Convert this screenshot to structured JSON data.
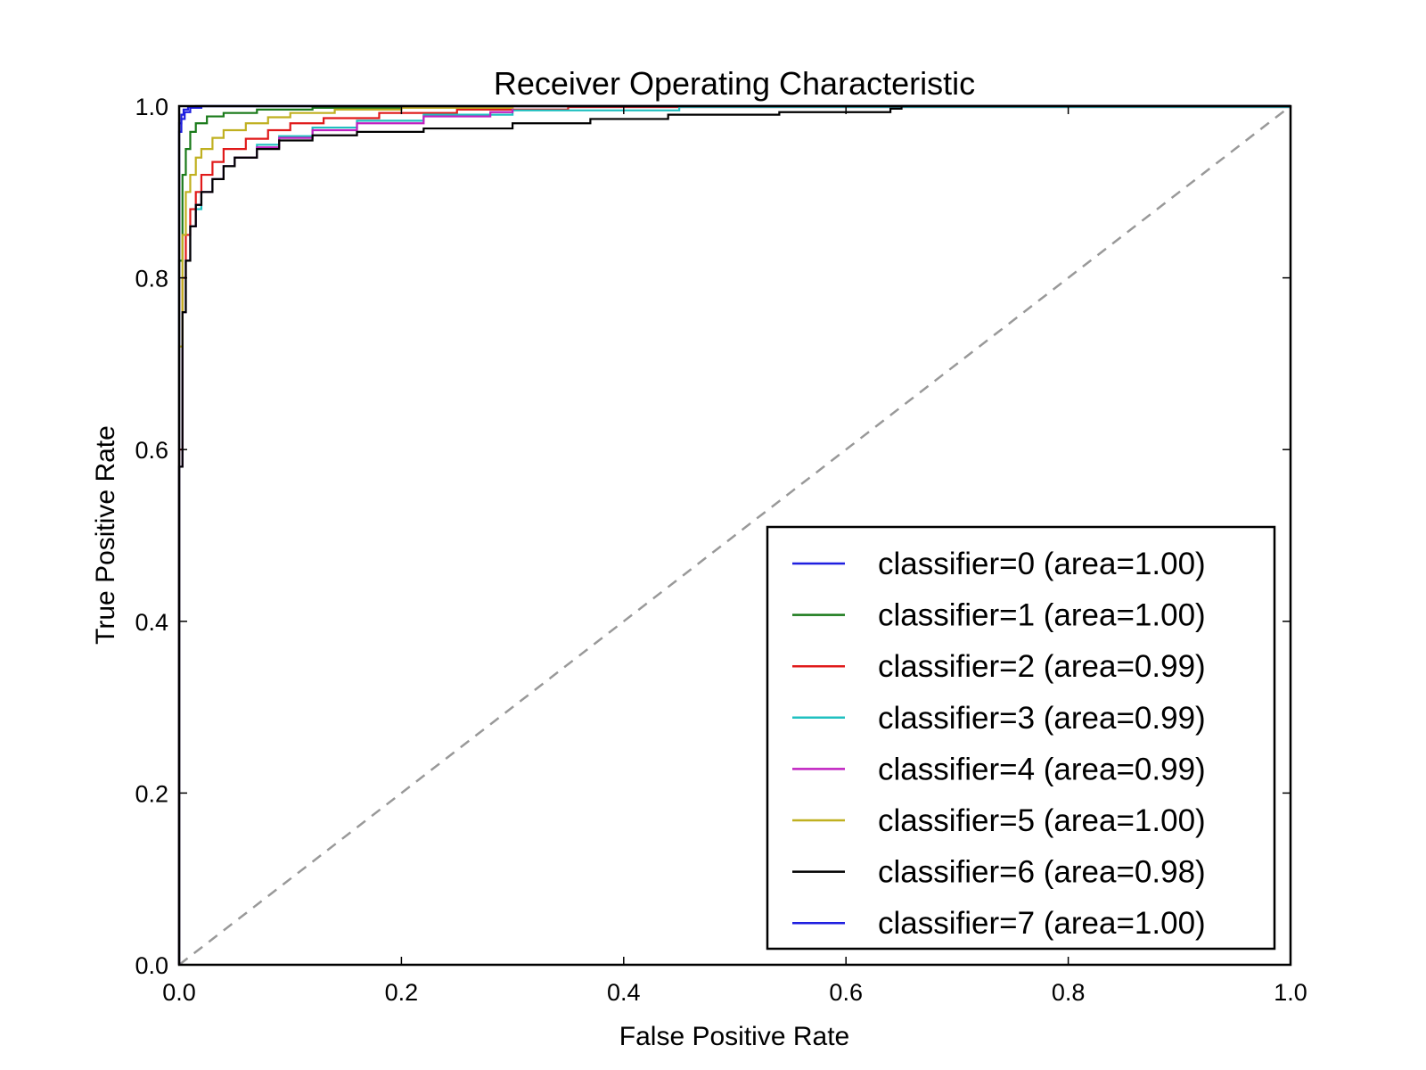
{
  "chart_data": {
    "type": "line",
    "title": "Receiver Operating Characteristic",
    "xlabel": "False Positive Rate",
    "ylabel": "True Positive Rate",
    "xlim": [
      0,
      1
    ],
    "ylim": [
      0,
      1
    ],
    "xticks": [
      "0.0",
      "0.2",
      "0.4",
      "0.6",
      "0.8",
      "1.0"
    ],
    "yticks": [
      "0.0",
      "0.2",
      "0.4",
      "0.6",
      "0.8",
      "1.0"
    ],
    "grid": false,
    "legend_position": "lower-right",
    "diagonal": {
      "x": [
        0,
        1
      ],
      "y": [
        0,
        1
      ],
      "color": "#999999",
      "style": "dashed"
    },
    "series": [
      {
        "name": "classifier=0 (area=1.00)",
        "color": "#1f1fe0",
        "x": [
          0,
          0,
          0.002,
          0.005,
          0.01,
          0.02,
          1
        ],
        "y": [
          0,
          0.97,
          0.985,
          0.993,
          0.998,
          1.0,
          1.0
        ]
      },
      {
        "name": "classifier=1 (area=1.00)",
        "color": "#1a7a1a",
        "x": [
          0,
          0,
          0.003,
          0.006,
          0.01,
          0.015,
          0.025,
          0.04,
          0.07,
          0.12,
          0.2,
          1
        ],
        "y": [
          0,
          0.82,
          0.92,
          0.95,
          0.97,
          0.98,
          0.988,
          0.992,
          0.996,
          0.998,
          1.0,
          1.0
        ]
      },
      {
        "name": "classifier=2 (area=0.99)",
        "color": "#e01a1a",
        "x": [
          0,
          0,
          0.003,
          0.006,
          0.01,
          0.015,
          0.02,
          0.03,
          0.04,
          0.06,
          0.08,
          0.1,
          0.13,
          0.18,
          0.25,
          0.35,
          1
        ],
        "y": [
          0,
          0.6,
          0.8,
          0.85,
          0.88,
          0.9,
          0.92,
          0.935,
          0.95,
          0.962,
          0.972,
          0.98,
          0.986,
          0.992,
          0.996,
          0.999,
          1.0
        ]
      },
      {
        "name": "classifier=3 (area=0.99)",
        "color": "#20c0c0",
        "x": [
          0,
          0,
          0.003,
          0.006,
          0.01,
          0.015,
          0.02,
          0.03,
          0.04,
          0.05,
          0.07,
          0.09,
          0.12,
          0.16,
          0.22,
          0.3,
          0.45,
          1
        ],
        "y": [
          0,
          0.58,
          0.76,
          0.82,
          0.86,
          0.88,
          0.9,
          0.915,
          0.93,
          0.94,
          0.955,
          0.965,
          0.975,
          0.983,
          0.99,
          0.995,
          0.999,
          1.0
        ]
      },
      {
        "name": "classifier=4 (area=0.99)",
        "color": "#c020c0",
        "x": [
          0,
          0,
          0.003,
          0.006,
          0.01,
          0.015,
          0.02,
          0.03,
          0.04,
          0.05,
          0.07,
          0.09,
          0.12,
          0.16,
          0.22,
          0.28,
          0.3,
          1
        ],
        "y": [
          0,
          0.58,
          0.76,
          0.82,
          0.86,
          0.885,
          0.9,
          0.915,
          0.93,
          0.94,
          0.952,
          0.963,
          0.972,
          0.98,
          0.988,
          0.993,
          1.0,
          1.0
        ]
      },
      {
        "name": "classifier=5 (area=1.00)",
        "color": "#c0b020",
        "x": [
          0,
          0,
          0.003,
          0.006,
          0.01,
          0.015,
          0.02,
          0.03,
          0.04,
          0.06,
          0.08,
          0.1,
          0.14,
          0.2,
          0.3,
          1
        ],
        "y": [
          0,
          0.72,
          0.85,
          0.9,
          0.92,
          0.94,
          0.95,
          0.963,
          0.972,
          0.98,
          0.987,
          0.992,
          0.996,
          0.998,
          1.0,
          1.0
        ]
      },
      {
        "name": "classifier=6 (area=0.98)",
        "color": "#000000",
        "x": [
          0,
          0,
          0.003,
          0.006,
          0.01,
          0.015,
          0.02,
          0.03,
          0.04,
          0.05,
          0.07,
          0.09,
          0.12,
          0.16,
          0.22,
          0.3,
          0.37,
          0.44,
          0.54,
          0.64,
          0.65,
          1
        ],
        "y": [
          0,
          0.58,
          0.76,
          0.82,
          0.86,
          0.885,
          0.9,
          0.915,
          0.93,
          0.94,
          0.95,
          0.96,
          0.966,
          0.97,
          0.974,
          0.98,
          0.985,
          0.99,
          0.993,
          0.997,
          1.0,
          1.0
        ]
      },
      {
        "name": "classifier=7 (area=1.00)",
        "color": "#1f1fe0",
        "x": [
          0,
          0,
          0.002,
          0.004,
          0.008,
          0.015,
          1
        ],
        "y": [
          0,
          0.98,
          0.99,
          0.996,
          0.999,
          1.0,
          1.0
        ]
      }
    ]
  }
}
